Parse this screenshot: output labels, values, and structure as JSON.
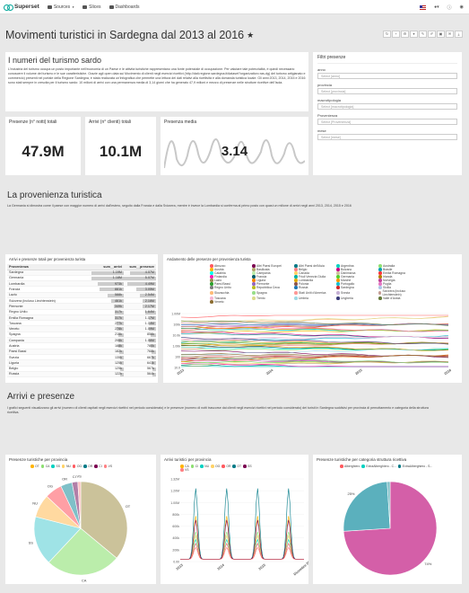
{
  "nav": {
    "brand": "Superset",
    "items": [
      "Sources",
      "Slices",
      "Dashboards"
    ]
  },
  "dashboard": {
    "title": "Movimenti turistici in Sardegna dal 2013 al 2016",
    "toolbar_icons": [
      "refresh-icon",
      "plus-icon",
      "gear-icon",
      "filter-icon",
      "css-icon",
      "edit-icon",
      "save-icon",
      "email-icon",
      "download-icon"
    ]
  },
  "intro": {
    "title": "I numeri del turismo sardo",
    "text": "L'industria del turismo occupa un posto importante nell'economia di un Paese e le attività turistiche rappresentano una fonte potenziale di occupazione. Per valutare tale potenzialità, è quindi necessario conoscere il volume del turismo e le sue caratteristiche. Grazie agli open data sui Movimento di clienti negli esercizi ricettivi (http://dati.regione.sardegna.it/dataset?organization=ras-dg) del turismo artigianato e commercio) presenti nel portale della Regione Sardegna, è stata realizzata un'infografica che permette una lettura dei dati relativi alla ricettività e alla domanda turistica locale. Gli anni 2013, 2014, 2015 e 2016 sono stati sempre in crescita per il turismo sardo: 10 milioni di arrivi con una permanenza media di 3,14 giorni che ha generato 47,9 milioni e mezzo di presenze nelle strutture ricettive dell'Isola."
  },
  "filters": {
    "title": "Filtri presenze",
    "fields": [
      {
        "label": "anno",
        "placeholder": "Select [anno]"
      },
      {
        "label": "provincia",
        "placeholder": "Select [provincia]"
      },
      {
        "label": "macrotipologia",
        "placeholder": "Select [macrotipologia]"
      },
      {
        "label": "Provenienza",
        "placeholder": "Select [Provenienza]"
      },
      {
        "label": "mese",
        "placeholder": "Select [mese]"
      }
    ]
  },
  "kpis": [
    {
      "title": "Presenze (n° notti) totali",
      "value": "47.9M"
    },
    {
      "title": "Arrivi (n° clienti) totali",
      "value": "10.1M"
    },
    {
      "title": "Presenza media",
      "value": "3.14"
    }
  ],
  "provenienza": {
    "title": "La provenienza turistica",
    "text": "La Germania si dimostra come il paese con maggior numero di arrivi dall'estero, seguito dalla Francia e dalla Svizzera, mentre è invece la Lombardia si conferma al primo posto con quasi un milione di arrivi negli anni 2013, 2014, 2015 e 2016"
  },
  "table_panel": {
    "title": "Arrivi e presenze totali per provenienza turista",
    "columns": [
      "Provenienza",
      "sum__arrivi",
      "sum__presenze"
    ],
    "rows": [
      [
        "Sardegna",
        "1.19M",
        "4.07M"
      ],
      [
        "Germania",
        "1.18M",
        "5.07M"
      ],
      [
        "Lombardia",
        "973k",
        "4.49M"
      ],
      [
        "Francia",
        "881k",
        "3.05M"
      ],
      [
        "Lazio",
        "588k",
        "2.54M"
      ],
      [
        "Svizzera (incluso Liechtenstein)",
        "461k",
        "2.16M"
      ],
      [
        "Piemonte",
        "349k",
        "2.17M"
      ],
      [
        "Regno Unito",
        "317k",
        "1.64M"
      ],
      [
        "Emilia Romagna",
        "317k",
        "1.17M"
      ],
      [
        "Toscana",
        "277k",
        "1.14M"
      ],
      [
        "Veneto",
        "278k",
        "1.09M"
      ],
      [
        "Spagna",
        "215k",
        "856k"
      ],
      [
        "Campania",
        "206k",
        "1.06M"
      ],
      [
        "Austria",
        "188k",
        "780k"
      ],
      [
        "Paesi Bassi",
        "182k",
        "768k"
      ],
      [
        "Svezia",
        "135k",
        "667k"
      ],
      [
        "Liguria",
        "125k",
        "641k"
      ],
      [
        "Belgio",
        "125k",
        "567k"
      ],
      [
        "Russia",
        "122k",
        "564k"
      ]
    ],
    "max_arrivi": 1.19,
    "max_presenze": 5.07
  },
  "line_panel": {
    "title": "Andamento delle presenze per provenienza turista",
    "legend": [
      {
        "name": "Abruzzo",
        "color": "#ff5a5f"
      },
      {
        "name": "Altri Paesi Europei",
        "color": "#7b0051"
      },
      {
        "name": "Altri Paesi dell'Asia",
        "color": "#007a87"
      },
      {
        "name": "Argentina",
        "color": "#00d1c1"
      },
      {
        "name": "Australia",
        "color": "#8ce071"
      },
      {
        "name": "Austria",
        "color": "#ffb400"
      },
      {
        "name": "Basilicata",
        "color": "#b4a76c"
      },
      {
        "name": "Belgio",
        "color": "#ff8083"
      },
      {
        "name": "Bolzano",
        "color": "#cc0086"
      },
      {
        "name": "Brasile",
        "color": "#00a1b3"
      },
      {
        "name": "Calabria",
        "color": "#00ffeb"
      },
      {
        "name": "Campania",
        "color": "#bbedab"
      },
      {
        "name": "Canada",
        "color": "#ffd266"
      },
      {
        "name": "Danimarca",
        "color": "#cbc29a"
      },
      {
        "name": "Emilia Romagna",
        "color": "#ff3339"
      },
      {
        "name": "Finlandia",
        "color": "#ff1ab1"
      },
      {
        "name": "Francia",
        "color": "#005c66"
      },
      {
        "name": "Friuli Venezia Giulia",
        "color": "#00b3a5"
      },
      {
        "name": "Germania",
        "color": "#55d12e"
      },
      {
        "name": "Irlanda",
        "color": "#b37e00"
      },
      {
        "name": "Lazio",
        "color": "#988b4e"
      },
      {
        "name": "Liguria",
        "color": "#fd8200"
      },
      {
        "name": "Lombardia",
        "color": "#e0a800"
      },
      {
        "name": "Marche",
        "color": "#ff9900"
      },
      {
        "name": "Norvegia",
        "color": "#c1409b"
      },
      {
        "name": "Paesi Bassi",
        "color": "#2ca02c"
      },
      {
        "name": "Piemonte",
        "color": "#9467bd"
      },
      {
        "name": "Polonia",
        "color": "#8c564b"
      },
      {
        "name": "Portogallo",
        "color": "#17becf"
      },
      {
        "name": "Puglia",
        "color": "#e377c2"
      },
      {
        "name": "Regno Unito",
        "color": "#7f7f7f"
      },
      {
        "name": "Repubblica Ceca",
        "color": "#bcbd22"
      },
      {
        "name": "Russia",
        "color": "#1f77b4"
      },
      {
        "name": "Sardegna",
        "color": "#d62728"
      },
      {
        "name": "Sicilia",
        "color": "#aec7e8"
      },
      {
        "name": "Slovacchia",
        "color": "#ffbb78"
      },
      {
        "name": "Spagna",
        "color": "#98df8a"
      },
      {
        "name": "Stati Uniti d'America",
        "color": "#ff9896"
      },
      {
        "name": "Svezia",
        "color": "#c5b0d5"
      },
      {
        "name": "Svizzera (incluso Liechtenstein)",
        "color": "#c49c94"
      },
      {
        "name": "Toscana",
        "color": "#f7b6d2"
      },
      {
        "name": "Trento",
        "color": "#dbdb8d"
      },
      {
        "name": "Umbria",
        "color": "#9edae5"
      },
      {
        "name": "Ungheria",
        "color": "#393b79"
      },
      {
        "name": "Valle d'Aosta",
        "color": "#637939"
      },
      {
        "name": "Veneto",
        "color": "#8c6d31"
      }
    ],
    "yticks": [
      "1.00M",
      "100k",
      "10.0k",
      "1.00k",
      "100",
      "10.0"
    ],
    "xticks": [
      "2013",
      "2014",
      "2015",
      "2016"
    ]
  },
  "arrivi_section": {
    "title": "Arrivi e presenze",
    "text": "I grafici seguenti visualizzano gli arrivi (numero di clienti ospitati negli esercizi ricettivi nel periodo considerato) e le presenze (numero di notti trascorse dai clienti negli esercizi ricettivi nel periodo considerato) dei turisti in Sardegna suddivisi per provincia di pernottamento e categoria della struttura ricettiva."
  },
  "pie_provincia": {
    "title": "Presenze turistiche per provincia",
    "legend": [
      {
        "name": "OT",
        "color": "#ffb400"
      },
      {
        "name": "CA",
        "color": "#8ce071"
      },
      {
        "name": "SS",
        "color": "#00d1c1"
      },
      {
        "name": "NU",
        "color": "#ffd266"
      },
      {
        "name": "OG",
        "color": "#ff5a5f"
      },
      {
        "name": "OR",
        "color": "#007a87"
      },
      {
        "name": "CI",
        "color": "#7b0051"
      },
      {
        "name": "VS",
        "color": "#ff8083"
      }
    ],
    "slices": [
      {
        "label": "OT",
        "value": 36,
        "color": "#cbc29a"
      },
      {
        "label": "CA",
        "value": 26,
        "color": "#bbedab"
      },
      {
        "label": "SS",
        "value": 17,
        "color": "#9fe3e6"
      },
      {
        "label": "NU",
        "value": 8,
        "color": "#ffd9a0"
      },
      {
        "label": "OG",
        "value": 6,
        "color": "#ff9fa5"
      },
      {
        "label": "OR",
        "value": 4,
        "color": "#7fc0c8"
      },
      {
        "label": "CI",
        "value": 2,
        "color": "#b27fa8"
      },
      {
        "label": "VS",
        "value": 1,
        "color": "#ffc0c2"
      }
    ]
  },
  "arrivi_provincia": {
    "title": "Arrivi turistici per provincia",
    "legend": [
      {
        "name": "CA",
        "color": "#ffb400"
      },
      {
        "name": "CI",
        "color": "#8ce071"
      },
      {
        "name": "NU",
        "color": "#00d1c1"
      },
      {
        "name": "OG",
        "color": "#ffd266"
      },
      {
        "name": "OR",
        "color": "#ff5a5f"
      },
      {
        "name": "OT",
        "color": "#007a87"
      },
      {
        "name": "SS",
        "color": "#7b0051"
      },
      {
        "name": "VS",
        "color": "#ff8083"
      }
    ],
    "yticks": [
      "1.32M",
      "1.20M",
      "1.00M",
      "800k",
      "600k",
      "400k",
      "200k",
      "0.00"
    ],
    "xticks": [
      "2013",
      "2014",
      "2015",
      "Dicembre 2016"
    ]
  },
  "pie_categoria": {
    "title": "Presenze turistiche per categoria struttura ricettiva",
    "legend": [
      {
        "name": "Alberghiero",
        "color": "#ff5a5f"
      },
      {
        "name": "ExtraAlberghiero - C...",
        "color": "#00d1c1"
      },
      {
        "name": "ExtraAlberghiero - S...",
        "color": "#007a87"
      }
    ],
    "slices": [
      {
        "label": "74%",
        "value": 74,
        "color": "#d45fa8"
      },
      {
        "label": "25%",
        "value": 25,
        "color": "#5bb0bd"
      },
      {
        "label": "",
        "value": 1,
        "color": "#7fc0c8"
      }
    ]
  }
}
